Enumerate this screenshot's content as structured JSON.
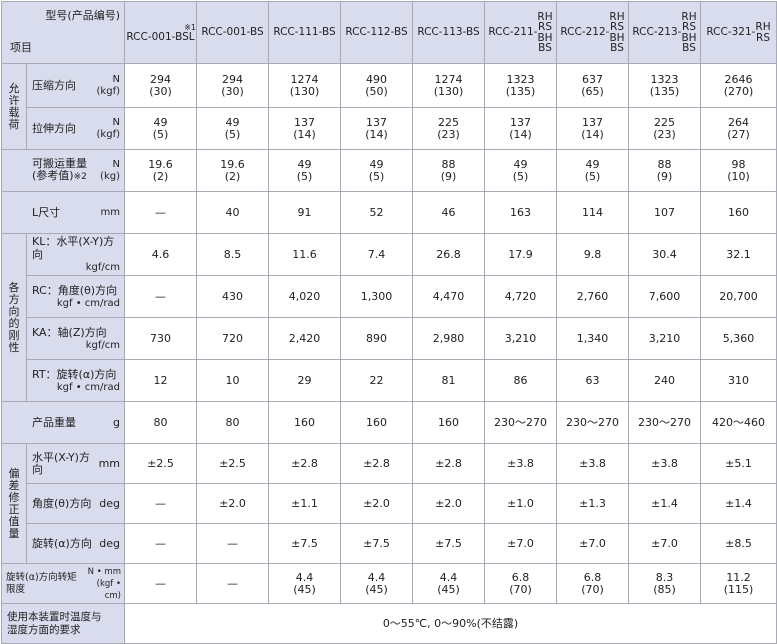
{
  "header": {
    "corner_model": "型号(产品编号)",
    "corner_item": "项目",
    "footnote_mark": "※1",
    "models": [
      {
        "main": "RCC-001-BSL",
        "suffix": []
      },
      {
        "main": "RCC-001-BS",
        "suffix": []
      },
      {
        "main": "RCC-111-BS",
        "suffix": []
      },
      {
        "main": "RCC-112-BS",
        "suffix": []
      },
      {
        "main": "RCC-113-BS",
        "suffix": []
      },
      {
        "main": "RCC-211-",
        "suffix": [
          "RH",
          "RS",
          "BH",
          "BS"
        ]
      },
      {
        "main": "RCC-212-",
        "suffix": [
          "RH",
          "RS",
          "BH",
          "BS"
        ]
      },
      {
        "main": "RCC-213-",
        "suffix": [
          "RH",
          "RS",
          "BH",
          "BS"
        ]
      },
      {
        "main": "RCC-321-",
        "suffix": [
          "RH",
          "RS"
        ]
      }
    ]
  },
  "groups": {
    "allowable_load": [
      "允",
      "许",
      "载",
      "荷"
    ],
    "stiffness": [
      "各",
      "方",
      "向",
      "的",
      "刚",
      "性"
    ],
    "deviation": [
      "偏",
      "差",
      "修",
      "正",
      "值",
      "量"
    ]
  },
  "rows": {
    "compression": {
      "name": "压缩方向",
      "unit1": "N",
      "unit2": "(kgf)",
      "values": [
        [
          "294",
          "(30)"
        ],
        [
          "294",
          "(30)"
        ],
        [
          "1274",
          "(130)"
        ],
        [
          "490",
          "(50)"
        ],
        [
          "1274",
          "(130)"
        ],
        [
          "1323",
          "(135)"
        ],
        [
          "637",
          "(65)"
        ],
        [
          "1323",
          "(135)"
        ],
        [
          "2646",
          "(270)"
        ]
      ]
    },
    "tension": {
      "name": "拉伸方向",
      "unit1": "N",
      "unit2": "(kgf)",
      "values": [
        [
          "49",
          "(5)"
        ],
        [
          "49",
          "(5)"
        ],
        [
          "137",
          "(14)"
        ],
        [
          "137",
          "(14)"
        ],
        [
          "225",
          "(23)"
        ],
        [
          "137",
          "(14)"
        ],
        [
          "137",
          "(14)"
        ],
        [
          "225",
          "(23)"
        ],
        [
          "264",
          "(27)"
        ]
      ]
    },
    "payload": {
      "name1": "可搬运重量",
      "name2": "(参考值)",
      "note": "※2",
      "unit1": "N",
      "unit2": "(kg)",
      "values": [
        [
          "19.6",
          "(2)"
        ],
        [
          "19.6",
          "(2)"
        ],
        [
          "49",
          "(5)"
        ],
        [
          "49",
          "(5)"
        ],
        [
          "88",
          "(9)"
        ],
        [
          "49",
          "(5)"
        ],
        [
          "49",
          "(5)"
        ],
        [
          "88",
          "(9)"
        ],
        [
          "98",
          "(10)"
        ]
      ]
    },
    "l_dim": {
      "name": "L尺寸",
      "unit": "mm",
      "values": [
        "—",
        "40",
        "91",
        "52",
        "46",
        "163",
        "114",
        "107",
        "160"
      ]
    },
    "kl": {
      "name": "KL：水平(X-Y)方向",
      "unit": "kgf/cm",
      "values": [
        "4.6",
        "8.5",
        "11.6",
        "7.4",
        "26.8",
        "17.9",
        "9.8",
        "30.4",
        "32.1"
      ]
    },
    "rc": {
      "name": "RC：角度(θ)方向",
      "unit": "kgf • cm/rad",
      "values": [
        "—",
        "430",
        "4,020",
        "1,300",
        "4,470",
        "4,720",
        "2,760",
        "7,600",
        "20,700"
      ]
    },
    "ka": {
      "name": "KA：轴(Z)方向",
      "unit": "kgf/cm",
      "values": [
        "730",
        "720",
        "2,420",
        "890",
        "2,980",
        "3,210",
        "1,340",
        "3,210",
        "5,360"
      ]
    },
    "rt": {
      "name": "RT：旋转(α)方向",
      "unit": "kgf • cm/rad",
      "values": [
        "12",
        "10",
        "29",
        "22",
        "81",
        "86",
        "63",
        "240",
        "310"
      ]
    },
    "weight": {
      "name": "产品重量",
      "unit": "g",
      "values": [
        "80",
        "80",
        "160",
        "160",
        "160",
        "230～270",
        "230～270",
        "230～270",
        "420～460"
      ]
    },
    "dev_xy": {
      "name": "水平(X-Y)方向",
      "unit": "mm",
      "values": [
        "±2.5",
        "±2.5",
        "±2.8",
        "±2.8",
        "±2.8",
        "±3.8",
        "±3.8",
        "±3.8",
        "±5.1"
      ]
    },
    "dev_theta": {
      "name": "角度(θ)方向",
      "unit": "deg",
      "values": [
        "—",
        "±2.0",
        "±1.1",
        "±2.0",
        "±2.0",
        "±1.0",
        "±1.3",
        "±1.4",
        "±1.4"
      ]
    },
    "dev_alpha": {
      "name": "旋转(α)方向",
      "unit": "deg",
      "values": [
        "—",
        "—",
        "±7.5",
        "±7.5",
        "±7.5",
        "±7.0",
        "±7.0",
        "±7.0",
        "±8.5"
      ]
    },
    "torque": {
      "name": "旋转(α)方向转矩限度",
      "unit1": "N • mm",
      "unit2": "(kgf • cm)",
      "values": [
        [
          "—",
          ""
        ],
        [
          "—",
          ""
        ],
        [
          "4.4",
          "(45)"
        ],
        [
          "4.4",
          "(45)"
        ],
        [
          "4.4",
          "(45)"
        ],
        [
          "6.8",
          "(70)"
        ],
        [
          "6.8",
          "(70)"
        ],
        [
          "8.3",
          "(85)"
        ],
        [
          "11.2",
          "(115)"
        ]
      ]
    },
    "env": {
      "name1": "使用本装置时温度与",
      "name2": "湿度方面的要求",
      "value": "0～55℃, 0～90%(不结露)"
    }
  }
}
